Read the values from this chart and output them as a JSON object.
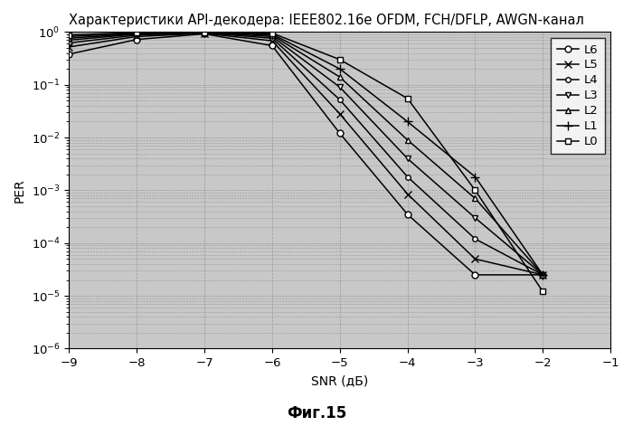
{
  "title": "Характеристики API-декодера: IEEE802.16e OFDM, FCH/DFLP, AWGN-канал",
  "xlabel": "SNR (дБ)",
  "ylabel": "PER",
  "caption": "Фиг.15",
  "xlim": [
    -9,
    -1
  ],
  "ylim_log": [
    -6,
    0
  ],
  "xticks": [
    -9,
    -8,
    -7,
    -6,
    -5,
    -4,
    -3,
    -2,
    -1
  ],
  "series": [
    {
      "label": "L6",
      "marker": "o",
      "markersize": 5,
      "snr": [
        -9,
        -8,
        -7,
        -6,
        -5,
        -4,
        -3,
        -2
      ],
      "per": [
        0.38,
        0.72,
        0.92,
        0.55,
        0.012,
        0.00035,
        2.5e-05,
        2.5e-05
      ]
    },
    {
      "label": "L5",
      "marker": "x",
      "markersize": 6,
      "snr": [
        -9,
        -8,
        -7,
        -6,
        -5,
        -4,
        -3,
        -2
      ],
      "per": [
        0.52,
        0.82,
        0.94,
        0.68,
        0.028,
        0.00085,
        5e-05,
        2.5e-05
      ]
    },
    {
      "label": "L4",
      "marker": "o",
      "markersize": 4,
      "snr": [
        -9,
        -8,
        -7,
        -6,
        -5,
        -4,
        -3,
        -2
      ],
      "per": [
        0.62,
        0.87,
        0.96,
        0.76,
        0.052,
        0.0018,
        0.00012,
        2.5e-05
      ]
    },
    {
      "label": "L3",
      "marker": "v",
      "markersize": 5,
      "snr": [
        -9,
        -8,
        -7,
        -6,
        -5,
        -4,
        -3,
        -2
      ],
      "per": [
        0.7,
        0.91,
        0.97,
        0.82,
        0.09,
        0.004,
        0.0003,
        2.5e-05
      ]
    },
    {
      "label": "L2",
      "marker": "^",
      "markersize": 5,
      "snr": [
        -9,
        -8,
        -7,
        -6,
        -5,
        -4,
        -3,
        -2
      ],
      "per": [
        0.76,
        0.93,
        0.975,
        0.87,
        0.14,
        0.009,
        0.0007,
        2.5e-05
      ]
    },
    {
      "label": "L1",
      "marker": "+",
      "markersize": 7,
      "snr": [
        -9,
        -8,
        -7,
        -6,
        -5,
        -4,
        -3,
        -2
      ],
      "per": [
        0.82,
        0.95,
        0.982,
        0.91,
        0.2,
        0.02,
        0.0018,
        2.5e-05
      ]
    },
    {
      "label": "L0",
      "marker": "s",
      "markersize": 5,
      "snr": [
        -9,
        -8,
        -7,
        -6,
        -5,
        -4,
        -3,
        -2
      ],
      "per": [
        0.88,
        0.97,
        0.99,
        0.95,
        0.3,
        0.055,
        0.001,
        1.2e-05
      ]
    }
  ],
  "grid_color": "#999999",
  "line_color": "black",
  "bg_color": "#c8c8c8",
  "title_fontsize": 10.5,
  "label_fontsize": 10,
  "tick_fontsize": 9.5,
  "legend_fontsize": 9.5
}
